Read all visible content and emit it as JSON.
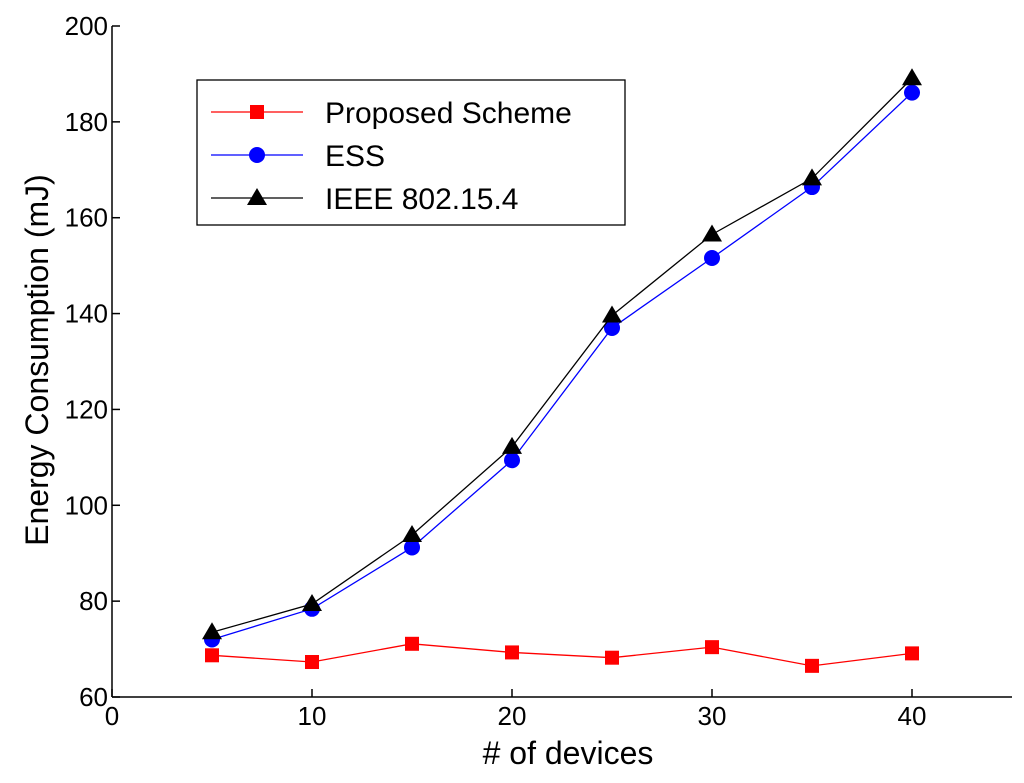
{
  "chart_data": {
    "type": "line",
    "title": "",
    "xlabel": "# of devices",
    "ylabel": "Energy Consumption (mJ)",
    "xlim": [
      0,
      45
    ],
    "ylim": [
      60,
      200
    ],
    "x_ticks": [
      0,
      10,
      20,
      30,
      40
    ],
    "y_ticks": [
      60,
      80,
      100,
      120,
      140,
      160,
      180,
      200
    ],
    "x_tick_labels": [
      "0",
      "10",
      "20",
      "30",
      "40"
    ],
    "y_tick_labels": [
      "60",
      "80",
      "100",
      "120",
      "140",
      "160",
      "180",
      "200"
    ],
    "grid": false,
    "legend_position": "top-left",
    "x": [
      5,
      10,
      15,
      20,
      25,
      30,
      35,
      40
    ],
    "series": [
      {
        "name": "Proposed Scheme",
        "color": "#ff0000",
        "marker": "square",
        "values": [
          68.7,
          67.3,
          71.1,
          69.3,
          68.2,
          70.4,
          66.5,
          69.1
        ]
      },
      {
        "name": "ESS",
        "color": "#0000ff",
        "marker": "circle",
        "values": [
          72.0,
          78.4,
          91.2,
          109.4,
          137.0,
          151.6,
          166.4,
          186.1
        ]
      },
      {
        "name": "IEEE 802.15.4",
        "color": "#000000",
        "marker": "triangle",
        "values": [
          73.5,
          79.4,
          93.8,
          112.2,
          139.6,
          156.5,
          168.2,
          189.1
        ]
      }
    ]
  }
}
